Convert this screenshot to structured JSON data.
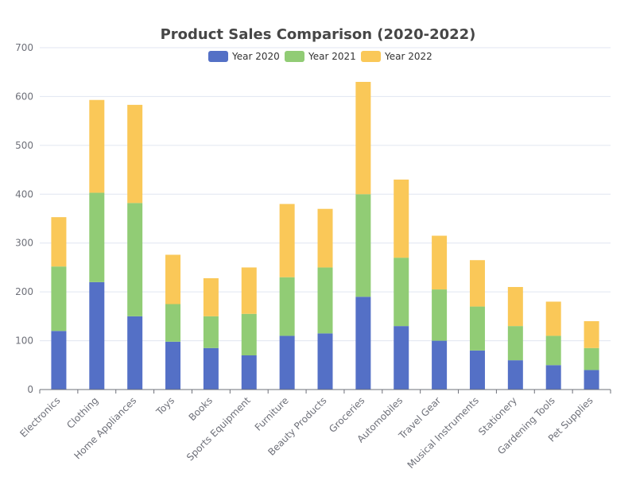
{
  "chart_data": {
    "type": "bar",
    "stacked": true,
    "title": "Product Sales Comparison (2020-2022)",
    "xlabel": "",
    "ylabel": "",
    "ylim": [
      0,
      700
    ],
    "y_ticks": [
      0,
      100,
      200,
      300,
      400,
      500,
      600,
      700
    ],
    "grid": true,
    "legend_position": "top-center",
    "categories": [
      "Electronics",
      "Clothing",
      "Home Appliances",
      "Toys",
      "Books",
      "Sports Equipment",
      "Furniture",
      "Beauty Products",
      "Groceries",
      "Automobiles",
      "Travel Gear",
      "Musical Instruments",
      "Stationery",
      "Gardening Tools",
      "Pet Supplies"
    ],
    "series": [
      {
        "name": "Year 2020",
        "color": "#5470c6",
        "values": [
          120,
          220,
          150,
          98,
          85,
          70,
          110,
          115,
          190,
          130,
          100,
          80,
          60,
          50,
          40
        ]
      },
      {
        "name": "Year 2021",
        "color": "#91cc75",
        "values": [
          132,
          183,
          232,
          77,
          65,
          85,
          120,
          135,
          210,
          140,
          105,
          90,
          70,
          60,
          45
        ]
      },
      {
        "name": "Year 2022",
        "color": "#fac858",
        "values": [
          101,
          190,
          201,
          101,
          78,
          95,
          150,
          120,
          230,
          160,
          110,
          95,
          80,
          70,
          55
        ]
      }
    ]
  }
}
